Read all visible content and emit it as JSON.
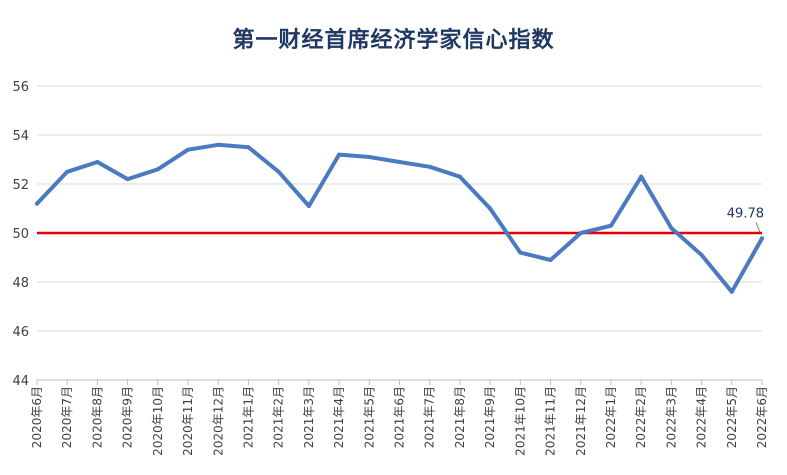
{
  "chart_data": {
    "type": "line",
    "title": "第一财经首席经济学家信心指数",
    "categories": [
      "2020年6月",
      "2020年7月",
      "2020年8月",
      "2020年9月",
      "2020年10月",
      "2020年11月",
      "2020年12月",
      "2021年1月",
      "2021年2月",
      "2021年3月",
      "2021年4月",
      "2021年5月",
      "2021年6月",
      "2021年7月",
      "2021年8月",
      "2021年9月",
      "2021年10月",
      "2021年11月",
      "2021年12月",
      "2022年1月",
      "2022年2月",
      "2022年3月",
      "2022年4月",
      "2022年5月",
      "2022年6月"
    ],
    "series": [
      {
        "values": [
          51.2,
          52.5,
          52.9,
          52.2,
          52.6,
          53.4,
          53.6,
          53.5,
          52.5,
          51.1,
          53.2,
          53.1,
          52.9,
          52.7,
          52.3,
          51.0,
          49.2,
          48.9,
          50.0,
          50.3,
          52.3,
          50.2,
          49.1,
          47.6,
          49.78
        ],
        "color": "#4a7ac0"
      }
    ],
    "reference_line": {
      "value": 50,
      "color": "#e00000"
    },
    "annotation": {
      "text": "49.78",
      "index": 24
    },
    "ylim": [
      44,
      56
    ],
    "yticks": [
      "44",
      "46",
      "48",
      "50",
      "52",
      "54",
      "56"
    ],
    "grid": true,
    "legend": "none",
    "xlabel": "",
    "ylabel": ""
  }
}
